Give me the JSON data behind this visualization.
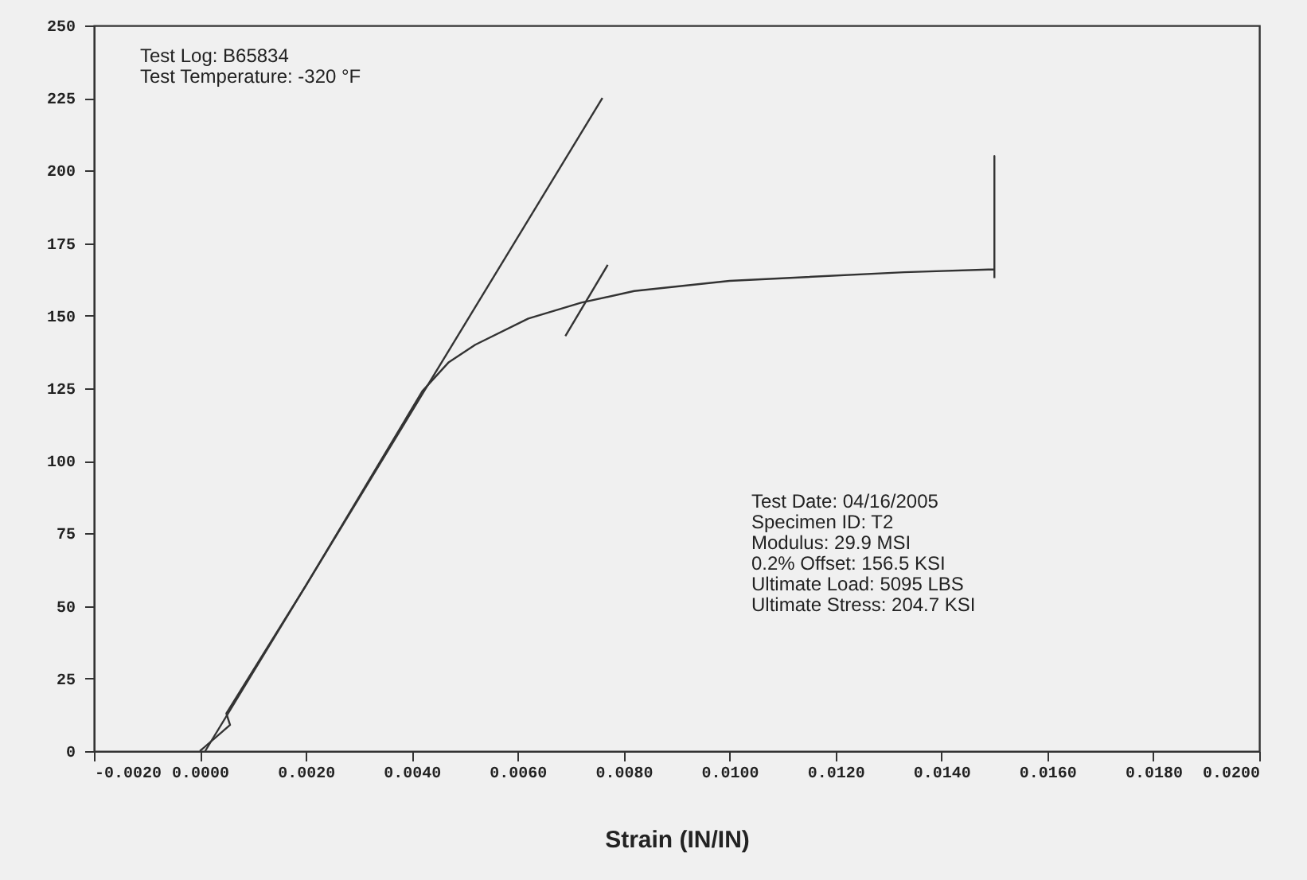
{
  "chart_data": {
    "type": "line",
    "xlabel": "Strain (IN/IN)",
    "series": [
      {
        "color": "#333333",
        "x": [
          0.0,
          0.00057,
          0.0005,
          0.002,
          0.0042,
          0.0047,
          0.0052,
          0.0062,
          0.0072,
          0.0082,
          0.01,
          0.0133,
          0.015,
          0.015,
          0.015
        ],
        "values": [
          0,
          9,
          13,
          57,
          124,
          134,
          140,
          149,
          154.5,
          158.5,
          162,
          165,
          166,
          205,
          163
        ]
      },
      {
        "color": "#333333",
        "x": [
          0.0001,
          0.0076
        ],
        "values": [
          0,
          225
        ]
      },
      {
        "color": "#333333",
        "x": [
          0.0069,
          0.0077
        ],
        "values": [
          143,
          167.5
        ]
      }
    ],
    "xlim": [
      -0.002,
      0.02
    ],
    "xticks": [
      {
        "value": -0.002,
        "label": "-0.0020"
      },
      {
        "value": 0,
        "label": "0.0000"
      },
      {
        "value": 0.002,
        "label": "0.0020"
      },
      {
        "value": 0.004,
        "label": "0.0040"
      },
      {
        "value": 0.006,
        "label": "0.0060"
      },
      {
        "value": 0.008,
        "label": "0.0080"
      },
      {
        "value": 0.01,
        "label": "0.0100"
      },
      {
        "value": 0.012,
        "label": "0.0120"
      },
      {
        "value": 0.014,
        "label": "0.0140"
      },
      {
        "value": 0.016,
        "label": "0.0160"
      },
      {
        "value": 0.018,
        "label": "0.0180"
      },
      {
        "value": 0.02,
        "label": "0.0200"
      }
    ],
    "ylim": [
      0,
      250
    ],
    "yticks": [
      0,
      25,
      50,
      75,
      100,
      125,
      150,
      175,
      200,
      225,
      250
    ],
    "annotations": [
      "Test Log: B65834\nTest Temperature: -320 °F",
      "Test Date: 04/16/2005\nSpecimen ID: T2\nModulus: 29.9 MSI\n 0.2% Offset: 156.5 KSI\nUltimate Load: 5095 LBS\nUltimate Stress: 204.7 KSI"
    ]
  }
}
